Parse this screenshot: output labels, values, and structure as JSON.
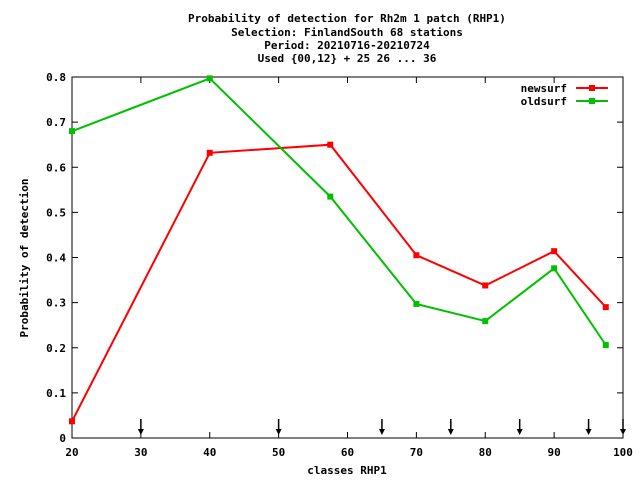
{
  "chart_data": {
    "type": "line",
    "title_lines": [
      "Probability of detection  for Rh2m 1 patch (RHP1)",
      "Selection: FinlandSouth     68 stations",
      "Period: 20210716-20210724",
      "Used {00,12} + 25 26 ... 36"
    ],
    "xlabel": "classes RHP1",
    "ylabel": "Probability of detection",
    "xlim": [
      20,
      100
    ],
    "ylim": [
      0,
      0.8
    ],
    "x_ticks": [
      20,
      30,
      40,
      50,
      60,
      70,
      80,
      90,
      100
    ],
    "y_ticks": [
      0,
      0.1,
      0.2,
      0.3,
      0.4,
      0.5,
      0.6,
      0.7,
      0.8
    ],
    "y_tick_labels": [
      "0",
      "0.1",
      "0.2",
      "0.3",
      "0.4",
      "0.5",
      "0.6",
      "0.7",
      "0.8"
    ],
    "legend_position": "top-right",
    "series": [
      {
        "name": "newsurf",
        "color": "#ff0000",
        "x": [
          20,
          40,
          57.5,
          70,
          80,
          90,
          97.5
        ],
        "y": [
          0.037,
          0.632,
          0.65,
          0.405,
          0.338,
          0.414,
          0.29
        ]
      },
      {
        "name": "oldsurf",
        "color": "#00c000",
        "x": [
          20,
          40,
          57.5,
          70,
          80,
          90,
          97.5
        ],
        "y": [
          0.68,
          0.797,
          0.535,
          0.297,
          0.259,
          0.376,
          0.206
        ]
      }
    ],
    "arrow_markers_x": [
      30,
      50,
      65,
      75,
      85,
      95,
      100
    ]
  }
}
